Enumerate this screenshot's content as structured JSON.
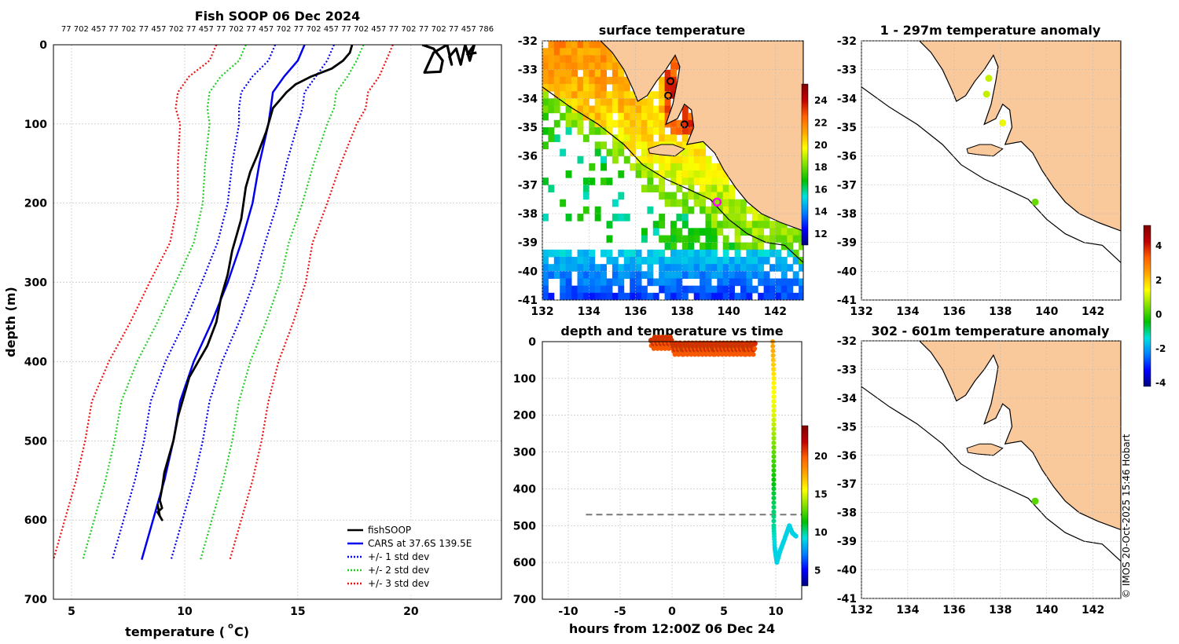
{
  "colors": {
    "land": "#f9c89b",
    "fishsoop": "#000000",
    "cars": "#0000ee",
    "std1": "#0000ee",
    "std2": "#22cc22",
    "std3": "#ee1111",
    "grid": "#bbbbbb",
    "threshold": "#777777"
  },
  "colormap": [
    "#00007f",
    "#0000ff",
    "#0080ff",
    "#00e0e0",
    "#00c000",
    "#80e000",
    "#ffff00",
    "#ffa500",
    "#ff6000",
    "#c00000",
    "#800000"
  ],
  "top_ticks": "77 702 457 77 702 77 457 702 77 457 77 702 77 457 702 77 702 457 77 702 457 77 702 77 702 77 457 786",
  "footer": "© IMOS 20-Oct-2025 15:46 Hobart",
  "chart_data": [
    {
      "id": "profile",
      "type": "line",
      "title": "Fish SOOP 06 Dec 2024",
      "xlabel_main": "temperature (",
      "xlabel_sup": "o",
      "xlabel_end": " C)",
      "ylabel": "depth (m)",
      "xlim": [
        4.2,
        24.0
      ],
      "ylim": [
        700,
        0
      ],
      "xticks": [
        5,
        10,
        15,
        20
      ],
      "yticks": [
        0,
        100,
        200,
        300,
        400,
        500,
        600,
        700
      ],
      "grid": true,
      "legend_position": "bottom-right",
      "legend": [
        "fishSOOP",
        "CARS at 37.6S 139.5E",
        "+/- 1 std dev",
        "+/- 2 std dev",
        "+/- 3 std dev"
      ],
      "depth": [
        0,
        20,
        40,
        60,
        80,
        100,
        150,
        200,
        250,
        300,
        350,
        400,
        450,
        500,
        550,
        600,
        650
      ],
      "cars": [
        15.3,
        15.0,
        14.4,
        13.9,
        13.8,
        13.7,
        13.3,
        13.0,
        12.5,
        11.9,
        11.2,
        10.4,
        9.8,
        9.5,
        9.1,
        8.6,
        8.1
      ],
      "std": [
        1.3,
        1.3,
        1.4,
        1.4,
        1.4,
        1.3,
        1.2,
        1.1,
        1.05,
        1.15,
        1.2,
        1.25,
        1.3,
        1.3,
        1.3,
        1.3,
        1.3
      ],
      "fishsoop_surface": [
        {
          "t": 17.4,
          "d": 0
        },
        {
          "t": 17.3,
          "d": 10
        },
        {
          "t": 17.0,
          "d": 20
        },
        {
          "t": 16.5,
          "d": 30
        },
        {
          "t": 15.6,
          "d": 40
        },
        {
          "t": 14.9,
          "d": 50
        },
        {
          "t": 14.5,
          "d": 60
        },
        {
          "t": 14.2,
          "d": 70
        },
        {
          "t": 13.9,
          "d": 80
        },
        {
          "t": 13.8,
          "d": 90
        },
        {
          "t": 13.6,
          "d": 110
        },
        {
          "t": 13.2,
          "d": 140
        },
        {
          "t": 12.9,
          "d": 160
        },
        {
          "t": 12.7,
          "d": 180
        },
        {
          "t": 12.5,
          "d": 220
        },
        {
          "t": 12.1,
          "d": 260
        },
        {
          "t": 11.9,
          "d": 290
        },
        {
          "t": 11.6,
          "d": 320
        },
        {
          "t": 11.4,
          "d": 350
        },
        {
          "t": 11.0,
          "d": 380
        },
        {
          "t": 10.6,
          "d": 400
        },
        {
          "t": 10.2,
          "d": 420
        },
        {
          "t": 10.0,
          "d": 440
        },
        {
          "t": 9.7,
          "d": 470
        },
        {
          "t": 9.5,
          "d": 500
        },
        {
          "t": 9.3,
          "d": 520
        },
        {
          "t": 9.1,
          "d": 540
        },
        {
          "t": 9.0,
          "d": 560
        },
        {
          "t": 8.9,
          "d": 575
        },
        {
          "t": 9.0,
          "d": 585
        },
        {
          "t": 8.8,
          "d": 590
        },
        {
          "t": 9.0,
          "d": 600
        },
        {
          "t": 8.9,
          "d": 595
        },
        {
          "t": 8.8,
          "d": 580
        }
      ],
      "fishsoop_cluster": [
        {
          "t": 20.5,
          "d": 0
        },
        {
          "t": 21.0,
          "d": 5
        },
        {
          "t": 21.4,
          "d": 20
        },
        {
          "t": 21.3,
          "d": 34
        },
        {
          "t": 20.6,
          "d": 35
        },
        {
          "t": 21.0,
          "d": 10
        },
        {
          "t": 21.6,
          "d": 0
        },
        {
          "t": 21.8,
          "d": 25
        },
        {
          "t": 21.7,
          "d": 15
        },
        {
          "t": 22.0,
          "d": 5
        },
        {
          "t": 22.2,
          "d": 25
        },
        {
          "t": 22.4,
          "d": 0
        },
        {
          "t": 22.6,
          "d": 20
        },
        {
          "t": 22.8,
          "d": 0
        },
        {
          "t": 22.5,
          "d": 12
        },
        {
          "t": 22.9,
          "d": 10
        }
      ]
    },
    {
      "id": "sst_map",
      "type": "heatmap",
      "title": "surface temperature",
      "xlim": [
        132,
        143.2
      ],
      "ylim": [
        -41,
        -32
      ],
      "xticks": [
        132,
        134,
        136,
        138,
        140,
        142
      ],
      "yticks": [
        -32,
        -33,
        -34,
        -35,
        -36,
        -37,
        -38,
        -39,
        -40,
        -41
      ],
      "colorbar_ticks": [
        12,
        14,
        16,
        18,
        20,
        22,
        24
      ],
      "colorbar_range": [
        11,
        25.5
      ],
      "marker_position": {
        "lon": 139.5,
        "lat": -37.6
      },
      "sightings": [
        {
          "lon": 137.5,
          "lat": -33.4
        },
        {
          "lon": 137.4,
          "lat": -33.9
        },
        {
          "lon": 138.1,
          "lat": -34.9
        }
      ]
    },
    {
      "id": "time_series",
      "type": "scatter",
      "title": "depth and temperature vs time",
      "xlabel": "hours from 12:00Z 06 Dec 24",
      "xlim": [
        -12.5,
        12.5
      ],
      "ylim": [
        700,
        0
      ],
      "xticks": [
        -10,
        -5,
        0,
        5,
        10
      ],
      "yticks": [
        0,
        100,
        200,
        300,
        400,
        500,
        600,
        700
      ],
      "threshold_depth": 470,
      "colorbar_ticks": [
        5,
        10,
        15,
        20
      ],
      "colorbar_range": [
        3,
        24
      ],
      "surface_hours": [
        -2,
        8
      ],
      "cast_points": [
        {
          "h": 9.7,
          "d": 0,
          "t": 18
        },
        {
          "h": 9.8,
          "d": 100,
          "t": 16
        },
        {
          "h": 9.8,
          "d": 200,
          "t": 15
        },
        {
          "h": 9.8,
          "d": 300,
          "t": 13
        },
        {
          "h": 9.8,
          "d": 400,
          "t": 11
        },
        {
          "h": 9.8,
          "d": 500,
          "t": 10
        },
        {
          "h": 9.9,
          "d": 560,
          "t": 9
        },
        {
          "h": 10.1,
          "d": 600,
          "t": 9
        },
        {
          "h": 10.4,
          "d": 570,
          "t": 9
        },
        {
          "h": 10.8,
          "d": 540,
          "t": 9
        },
        {
          "h": 11.3,
          "d": 500,
          "t": 9
        },
        {
          "h": 11.6,
          "d": 520,
          "t": 9
        },
        {
          "h": 12.0,
          "d": 530,
          "t": 9
        }
      ]
    },
    {
      "id": "anomaly_shallow",
      "type": "scatter",
      "title": "1 - 297m temperature anomaly",
      "xlim": [
        132,
        143.2
      ],
      "ylim": [
        -41,
        -32
      ],
      "xticks": [
        132,
        134,
        136,
        138,
        140,
        142
      ],
      "yticks": [
        -32,
        -33,
        -34,
        -35,
        -36,
        -37,
        -38,
        -39,
        -40,
        -41
      ],
      "points": [
        {
          "lon": 137.5,
          "lat": -33.3,
          "anomaly": 1.0
        },
        {
          "lon": 137.4,
          "lat": -33.85,
          "anomaly": 1.0
        },
        {
          "lon": 138.1,
          "lat": -34.85,
          "anomaly": 1.3
        },
        {
          "lon": 139.5,
          "lat": -37.6,
          "anomaly": 0.3
        }
      ]
    },
    {
      "id": "anomaly_deep",
      "type": "scatter",
      "title": "302 - 601m temperature anomaly",
      "xlim": [
        132,
        143.2
      ],
      "ylim": [
        -41,
        -32
      ],
      "xticks": [
        132,
        134,
        136,
        138,
        140,
        142
      ],
      "yticks": [
        -32,
        -33,
        -34,
        -35,
        -36,
        -37,
        -38,
        -39,
        -40,
        -41
      ],
      "points": [
        {
          "lon": 139.5,
          "lat": -37.6,
          "anomaly": 0.2
        }
      ],
      "colorbar_ticks": [
        -4,
        -2,
        0,
        2,
        4
      ],
      "colorbar_range": [
        -4.2,
        5.2
      ]
    }
  ]
}
